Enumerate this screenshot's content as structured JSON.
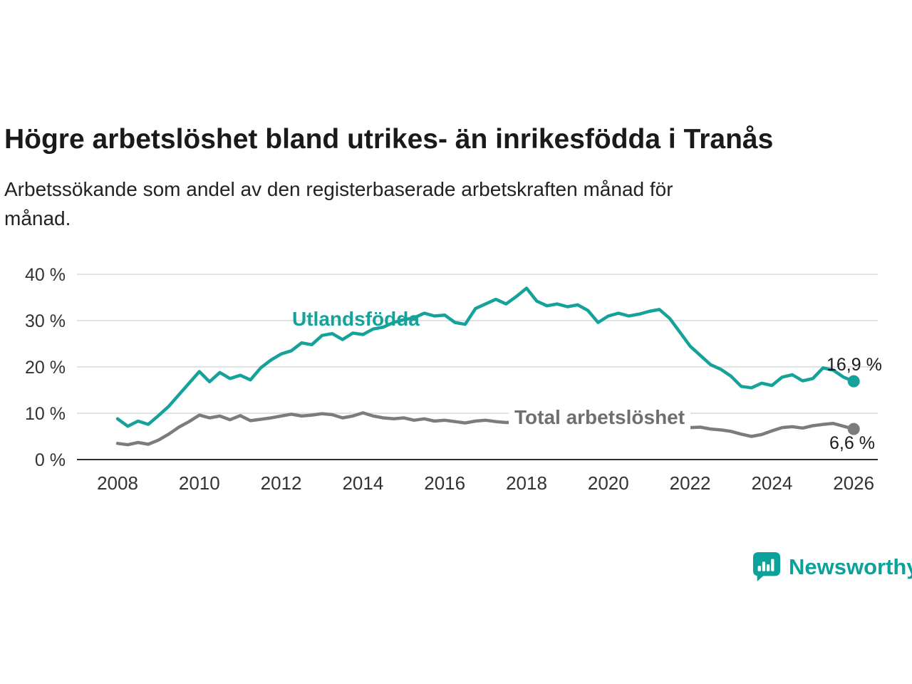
{
  "chart_data": {
    "type": "line",
    "title": "Högre arbetslöshet bland utrikes- än inrikesfödda i Tranås",
    "subtitle": "Arbetssökande som andel av den registerbaserade arbetskraften månad för månad.",
    "subtitle_lines": [
      "Arbetssökande som andel av den registerbaserade arbetskraften månad för",
      "månad."
    ],
    "xlabel": "",
    "ylabel": "",
    "ylim": [
      0,
      40
    ],
    "yticks": [
      0,
      10,
      20,
      30,
      40
    ],
    "ytick_labels": [
      "0 %",
      "10 %",
      "20 %",
      "30 %",
      "40 %"
    ],
    "xticks": [
      2008,
      2010,
      2012,
      2014,
      2016,
      2018,
      2020,
      2022,
      2024,
      2026
    ],
    "x_start": 2008,
    "x_step": 0.25,
    "grid": "horizontal",
    "legend": "inline-labels",
    "series": [
      {
        "name": "Utlandsfödda",
        "color": "#14a29a",
        "end_label": "16,9 %",
        "end_value": 16.9,
        "values": [
          8.8,
          7.2,
          8.3,
          7.6,
          9.5,
          11.5,
          14.0,
          16.5,
          19.0,
          16.8,
          18.8,
          17.5,
          18.2,
          17.2,
          19.8,
          21.5,
          22.8,
          23.5,
          25.2,
          24.8,
          26.8,
          27.2,
          25.9,
          27.3,
          27.0,
          28.2,
          28.6,
          29.6,
          30.2,
          30.6,
          31.6,
          31.0,
          31.2,
          29.6,
          29.2,
          32.6,
          33.6,
          34.6,
          33.6,
          35.2,
          37.0,
          34.2,
          33.2,
          33.6,
          33.0,
          33.4,
          32.2,
          29.6,
          31.0,
          31.6,
          31.0,
          31.4,
          32.0,
          32.4,
          30.5,
          27.5,
          24.5,
          22.5,
          20.5,
          19.5,
          18.0,
          15.8,
          15.5,
          16.5,
          16.0,
          17.8,
          18.3,
          17.0,
          17.5,
          19.8,
          19.3,
          17.8,
          16.9
        ]
      },
      {
        "name": "Total arbetslöshet",
        "color": "#7c7c7c",
        "end_label": "6,6 %",
        "end_value": 6.6,
        "values": [
          3.5,
          3.2,
          3.7,
          3.3,
          4.2,
          5.5,
          7.0,
          8.2,
          9.6,
          9.0,
          9.4,
          8.6,
          9.5,
          8.4,
          8.7,
          9.0,
          9.4,
          9.8,
          9.4,
          9.6,
          9.9,
          9.7,
          9.0,
          9.4,
          10.1,
          9.4,
          9.0,
          8.8,
          9.0,
          8.5,
          8.8,
          8.3,
          8.5,
          8.2,
          7.9,
          8.3,
          8.5,
          8.2,
          8.0,
          8.1,
          8.2,
          8.0,
          7.8,
          7.6,
          7.5,
          7.4,
          7.4,
          7.6,
          7.9,
          8.1,
          7.9,
          7.7,
          7.5,
          7.3,
          7.1,
          7.0,
          6.9,
          7.0,
          6.6,
          6.4,
          6.1,
          5.5,
          5.0,
          5.4,
          6.2,
          6.9,
          7.1,
          6.8,
          7.3,
          7.6,
          7.8,
          7.2,
          6.6
        ]
      }
    ]
  },
  "branding": {
    "name": "Newsworthy",
    "accent_color": "#0aa29a"
  }
}
